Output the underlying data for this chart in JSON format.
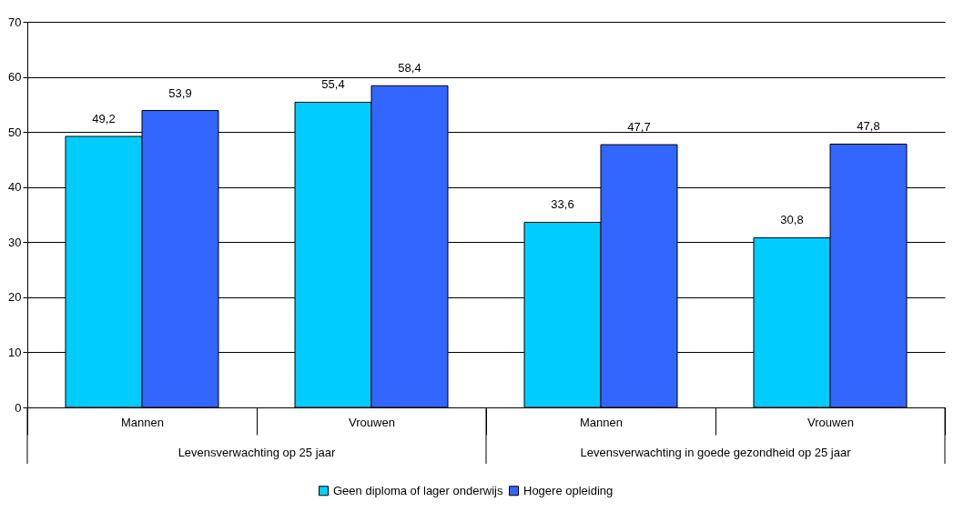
{
  "chart_data": {
    "type": "bar",
    "categories": [
      "Mannen",
      "Vrouwen",
      "Mannen",
      "Vrouwen"
    ],
    "series": [
      {
        "name": "Geen diploma of lager onderwijs",
        "color": "#00ccff",
        "values": [
          49.2,
          55.4,
          33.6,
          30.8
        ],
        "value_labels": [
          "49,2",
          "55,4",
          "33,6",
          "30,8"
        ]
      },
      {
        "name": "Hogere opleiding",
        "color": "#3366ff",
        "values": [
          53.9,
          58.4,
          47.7,
          47.8
        ],
        "value_labels": [
          "53,9",
          "58,4",
          "47,7",
          "47,8"
        ]
      }
    ],
    "annotations": [
      "Levensverwachting op 25 jaar",
      "Levensverwachting in goede gezondheid op 25 jaar"
    ],
    "ylim": [
      0,
      70
    ],
    "yticks": [
      0,
      10,
      20,
      30,
      40,
      50,
      60,
      70
    ],
    "grid": "y",
    "legend": "bottom"
  }
}
